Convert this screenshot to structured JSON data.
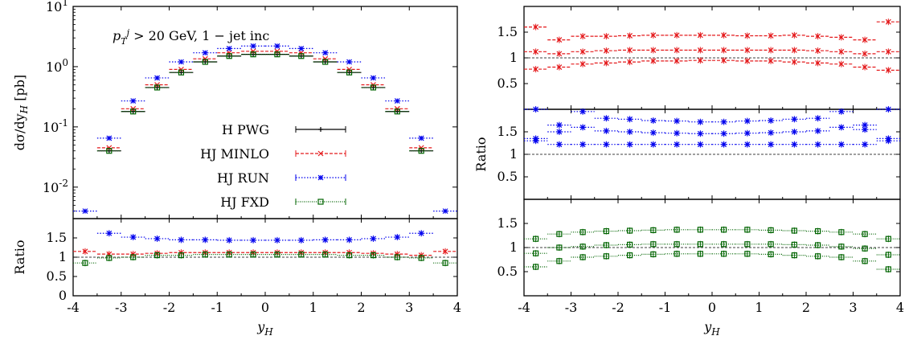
{
  "chart_data": [
    {
      "type": "scatter",
      "panel": "left-main",
      "annotation": "p_T^j > 20 GeV, 1 − jet inc",
      "ylabel": "dσ/dy_H [pb]",
      "yscale": "log",
      "ylim": [
        0.003,
        10
      ],
      "xlim": [
        -4,
        4
      ],
      "ytick_labels": [
        "10^1",
        "10^0",
        "10^-1",
        "10^-2"
      ],
      "legend_placement": "center",
      "series": [
        {
          "name": "H PWG",
          "color": "#000000",
          "x": [
            -3.25,
            -2.75,
            -2.25,
            -1.75,
            -1.25,
            -0.75,
            -0.25,
            0.25,
            0.75,
            1.25,
            1.75,
            2.25,
            2.75,
            3.25
          ],
          "values": [
            0.04,
            0.18,
            0.45,
            0.8,
            1.2,
            1.5,
            1.6,
            1.6,
            1.5,
            1.2,
            0.8,
            0.45,
            0.18,
            0.04
          ]
        },
        {
          "name": "HJ MINLO",
          "color": "#e41a1c",
          "x": [
            -3.25,
            -2.75,
            -2.25,
            -1.75,
            -1.25,
            -0.75,
            -0.25,
            0.25,
            0.75,
            1.25,
            1.75,
            2.25,
            2.75,
            3.25
          ],
          "values": [
            0.045,
            0.2,
            0.5,
            0.9,
            1.35,
            1.7,
            1.8,
            1.8,
            1.7,
            1.35,
            0.9,
            0.5,
            0.2,
            0.045
          ]
        },
        {
          "name": "HJ RUN",
          "color": "#0000ee",
          "x": [
            -3.75,
            -3.25,
            -2.75,
            -2.25,
            -1.75,
            -1.25,
            -0.75,
            -0.25,
            0.25,
            0.75,
            1.25,
            1.75,
            2.25,
            2.75,
            3.25,
            3.75
          ],
          "values": [
            0.004,
            0.065,
            0.27,
            0.65,
            1.2,
            1.7,
            2.0,
            2.2,
            2.2,
            2.0,
            1.7,
            1.2,
            0.65,
            0.27,
            0.065,
            0.004
          ]
        },
        {
          "name": "HJ FXD",
          "color": "#006400",
          "x": [
            -3.25,
            -2.75,
            -2.25,
            -1.75,
            -1.25,
            -0.75,
            -0.25,
            0.25,
            0.75,
            1.25,
            1.75,
            2.25,
            2.75,
            3.25
          ],
          "values": [
            0.04,
            0.18,
            0.45,
            0.8,
            1.2,
            1.5,
            1.6,
            1.6,
            1.5,
            1.2,
            0.8,
            0.45,
            0.18,
            0.04
          ]
        }
      ]
    },
    {
      "type": "scatter",
      "panel": "left-ratio",
      "ylabel": "Ratio",
      "xlabel": "y_H",
      "xlim": [
        -4,
        4
      ],
      "ylim": [
        0,
        2
      ],
      "ytick_labels": [
        "1.5",
        "1",
        "0.5",
        "0"
      ],
      "xtick_labels": [
        "-4",
        "-3",
        "-2",
        "-1",
        "0",
        "1",
        "2",
        "3",
        "4"
      ],
      "series": [
        {
          "name": "HJ MINLO",
          "color": "#e41a1c",
          "x": [
            -3.75,
            -3.25,
            -2.75,
            -2.25,
            -1.75,
            -1.25,
            -0.75,
            -0.25,
            0.25,
            0.75,
            1.25,
            1.75,
            2.25,
            2.75,
            3.25,
            3.75
          ],
          "values": [
            1.15,
            1.08,
            1.08,
            1.1,
            1.12,
            1.12,
            1.12,
            1.12,
            1.12,
            1.12,
            1.12,
            1.12,
            1.1,
            1.08,
            1.05,
            1.15
          ]
        },
        {
          "name": "HJ RUN",
          "color": "#0000ee",
          "x": [
            -3.25,
            -2.75,
            -2.25,
            -1.75,
            -1.25,
            -0.75,
            -0.25,
            0.25,
            0.75,
            1.25,
            1.75,
            2.25,
            2.75,
            3.25
          ],
          "values": [
            1.62,
            1.52,
            1.48,
            1.45,
            1.45,
            1.44,
            1.44,
            1.44,
            1.44,
            1.45,
            1.45,
            1.48,
            1.52,
            1.62
          ]
        },
        {
          "name": "HJ FXD",
          "color": "#006400",
          "x": [
            -3.75,
            -3.25,
            -2.75,
            -2.25,
            -1.75,
            -1.25,
            -0.75,
            -0.25,
            0.25,
            0.75,
            1.25,
            1.75,
            2.25,
            2.75,
            3.25,
            3.75
          ],
          "values": [
            0.85,
            0.98,
            1.0,
            1.05,
            1.05,
            1.07,
            1.07,
            1.07,
            1.07,
            1.07,
            1.07,
            1.05,
            1.05,
            1.0,
            0.98,
            0.85
          ]
        }
      ]
    },
    {
      "type": "scatter",
      "panel": "right-top",
      "xlim": [
        -4,
        4
      ],
      "ylim": [
        0,
        2
      ],
      "ytick_labels": [
        "1.5",
        "1",
        "0.5"
      ],
      "series": [
        {
          "name": "",
          "color": "#e41a1c",
          "x": [
            -3.75,
            -3.25,
            -2.75,
            -2.25,
            -1.75,
            -1.25,
            -0.75,
            -0.25,
            0.25,
            0.75,
            1.25,
            1.75,
            2.25,
            2.75,
            3.25,
            3.75
          ],
          "values": [
            1.6,
            1.35,
            1.42,
            1.42,
            1.43,
            1.44,
            1.44,
            1.44,
            1.44,
            1.43,
            1.43,
            1.44,
            1.42,
            1.4,
            1.35,
            1.7
          ]
        },
        {
          "name": "",
          "color": "#e41a1c",
          "x": [
            -3.75,
            -3.25,
            -2.75,
            -2.25,
            -1.75,
            -1.25,
            -0.75,
            -0.25,
            0.25,
            0.75,
            1.25,
            1.75,
            2.25,
            2.75,
            3.25,
            3.75
          ],
          "values": [
            1.12,
            1.08,
            1.12,
            1.14,
            1.15,
            1.15,
            1.15,
            1.15,
            1.15,
            1.15,
            1.15,
            1.15,
            1.14,
            1.12,
            1.08,
            1.12
          ]
        },
        {
          "name": "",
          "color": "#e41a1c",
          "x": [
            -3.75,
            -3.25,
            -2.75,
            -2.25,
            -1.75,
            -1.25,
            -0.75,
            -0.25,
            0.25,
            0.75,
            1.25,
            1.75,
            2.25,
            2.75,
            3.25,
            3.75
          ],
          "values": [
            0.78,
            0.82,
            0.88,
            0.9,
            0.92,
            0.94,
            0.94,
            0.95,
            0.95,
            0.94,
            0.94,
            0.92,
            0.9,
            0.88,
            0.82,
            0.76
          ]
        }
      ]
    },
    {
      "type": "scatter",
      "panel": "right-middle",
      "ylabel": "Ratio",
      "xlim": [
        -4,
        4
      ],
      "ylim": [
        0,
        2
      ],
      "ytick_labels": [
        "1.5",
        "1",
        "0.5"
      ],
      "series": [
        {
          "name": "",
          "color": "#0000ee",
          "x": [
            -3.75,
            -3.25,
            -2.75,
            -2.25,
            -1.75,
            -1.25,
            -0.75,
            -0.25,
            0.25,
            0.75,
            1.25,
            1.75,
            2.25,
            2.75,
            3.25,
            3.75
          ],
          "values": [
            2.0,
            1.65,
            1.95,
            1.8,
            1.78,
            1.75,
            1.74,
            1.72,
            1.72,
            1.74,
            1.75,
            1.78,
            1.8,
            1.95,
            1.65,
            2.0
          ]
        },
        {
          "name": "",
          "color": "#0000ee",
          "x": [
            -3.75,
            -3.25,
            -2.75,
            -2.25,
            -1.75,
            -1.25,
            -0.75,
            -0.25,
            0.25,
            0.75,
            1.25,
            1.75,
            2.25,
            2.75,
            3.25,
            3.75
          ],
          "values": [
            1.35,
            1.5,
            1.6,
            1.52,
            1.5,
            1.48,
            1.47,
            1.46,
            1.46,
            1.47,
            1.48,
            1.5,
            1.52,
            1.6,
            1.55,
            1.35
          ]
        },
        {
          "name": "",
          "color": "#0000ee",
          "x": [
            -3.75,
            -3.25,
            -2.75,
            -2.25,
            -1.75,
            -1.25,
            -0.75,
            -0.25,
            0.25,
            0.75,
            1.25,
            1.75,
            2.25,
            2.75,
            3.25,
            3.75
          ],
          "values": [
            1.3,
            1.22,
            1.22,
            1.22,
            1.22,
            1.22,
            1.22,
            1.22,
            1.22,
            1.22,
            1.22,
            1.22,
            1.22,
            1.22,
            1.22,
            1.3
          ]
        }
      ]
    },
    {
      "type": "scatter",
      "panel": "right-bottom",
      "xlabel": "y_H",
      "xlim": [
        -4,
        4
      ],
      "ylim": [
        0,
        2
      ],
      "ytick_labels": [
        "1.5",
        "1",
        "0.5"
      ],
      "xtick_labels": [
        "-4",
        "-3",
        "-2",
        "-1",
        "0",
        "1",
        "2",
        "3",
        "4"
      ],
      "series": [
        {
          "name": "",
          "color": "#006400",
          "x": [
            -3.75,
            -3.25,
            -2.75,
            -2.25,
            -1.75,
            -1.25,
            -0.75,
            -0.25,
            0.25,
            0.75,
            1.25,
            1.75,
            2.25,
            2.75,
            3.25,
            3.75
          ],
          "values": [
            1.18,
            1.28,
            1.32,
            1.34,
            1.35,
            1.36,
            1.37,
            1.37,
            1.37,
            1.37,
            1.36,
            1.35,
            1.34,
            1.32,
            1.28,
            1.18
          ]
        },
        {
          "name": "",
          "color": "#006400",
          "x": [
            -3.75,
            -3.25,
            -2.75,
            -2.25,
            -1.75,
            -1.25,
            -0.75,
            -0.25,
            0.25,
            0.75,
            1.25,
            1.75,
            2.25,
            2.75,
            3.25,
            3.75
          ],
          "values": [
            0.88,
            1.0,
            1.02,
            1.05,
            1.06,
            1.07,
            1.07,
            1.07,
            1.07,
            1.07,
            1.07,
            1.06,
            1.05,
            1.02,
            0.98,
            0.85
          ]
        },
        {
          "name": "",
          "color": "#006400",
          "x": [
            -3.75,
            -3.25,
            -2.75,
            -2.25,
            -1.75,
            -1.25,
            -0.75,
            -0.25,
            0.25,
            0.75,
            1.25,
            1.75,
            2.25,
            2.75,
            3.25,
            3.75
          ],
          "values": [
            0.6,
            0.72,
            0.8,
            0.82,
            0.84,
            0.86,
            0.87,
            0.87,
            0.87,
            0.87,
            0.86,
            0.84,
            0.82,
            0.8,
            0.72,
            0.55
          ]
        }
      ]
    }
  ]
}
